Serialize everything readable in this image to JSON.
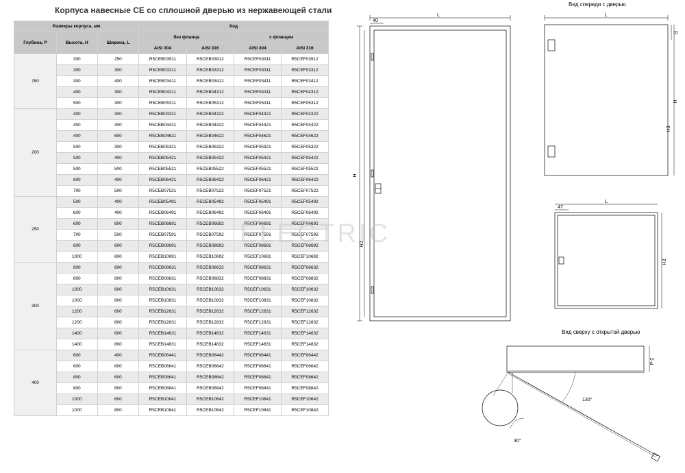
{
  "title": "Корпуса навесные CE со сплошной дверью из нержавеющей стали",
  "watermark": "ELECTRIC",
  "table": {
    "header1": {
      "dims": "Размеры корпуса, мм",
      "code": "Код"
    },
    "header2": {
      "noflange": "без фланца",
      "flange": "с фланцем"
    },
    "header3": {
      "depth": "Глубина, P",
      "height": "Высота, H",
      "width": "Ширина, L",
      "a304": "AISI 304",
      "a316": "AISI 316",
      "a304f": "AISI 304",
      "a316f": "AISI 316"
    },
    "groups": [
      {
        "depth": "150",
        "rows": [
          [
            "300",
            "250",
            "R5CEB03911",
            "R5CEB03912",
            "R5CEF03911",
            "R5CEF03912"
          ],
          [
            "300",
            "300",
            "R5CEB03311",
            "R5CEB03312",
            "R5CEF03311",
            "R5CEF03312"
          ],
          [
            "300",
            "400",
            "R5CEB03411",
            "R5CEB03412",
            "R5CEF03411",
            "R5CEF03412"
          ],
          [
            "400",
            "300",
            "R5CEB04311",
            "R5CEB04312",
            "R5CEF04311",
            "R5CEF04312"
          ],
          [
            "500",
            "300",
            "R5CEB05311",
            "R5CEB05312",
            "R5CEF05311",
            "R5CEF05312"
          ]
        ]
      },
      {
        "depth": "200",
        "rows": [
          [
            "400",
            "300",
            "R5CEB04321",
            "R5CEB04322",
            "R5CEF04321",
            "R5CEF04322"
          ],
          [
            "400",
            "400",
            "R5CEB04421",
            "R5CEB04422",
            "R5CEF04421",
            "R5CEF04422"
          ],
          [
            "400",
            "600",
            "R5CEB04621",
            "R5CEB04622",
            "R5CEF04621",
            "R5CEF04622"
          ],
          [
            "500",
            "300",
            "R5CEB05321",
            "R5CEB05322",
            "R5CEF05321",
            "R5CEF05322"
          ],
          [
            "500",
            "400",
            "R5CEB05421",
            "R5CEB05422",
            "R5CEF05421",
            "R5CEF05422"
          ],
          [
            "500",
            "500",
            "R5CEB05521",
            "R5CEB05522",
            "R5CEF05521",
            "R5CEF05522"
          ],
          [
            "600",
            "400",
            "R5CEB06421",
            "R5CEB06422",
            "R5CEF06421",
            "R5CEF06422"
          ],
          [
            "700",
            "500",
            "R5CEB07521",
            "R5CEB07522",
            "R5CEF07521",
            "R5CEF07522"
          ]
        ]
      },
      {
        "depth": "250",
        "rows": [
          [
            "500",
            "400",
            "R5CEB05491",
            "R5CEB05492",
            "R5CEF05491",
            "R5CEF05492"
          ],
          [
            "600",
            "400",
            "R5CEB06491",
            "R5CEB06492",
            "R5CEF06491",
            "R5CEF06492"
          ],
          [
            "600",
            "600",
            "R5CEB06691",
            "R5CEB06692",
            "R5CEF06691",
            "R5CEF06692"
          ],
          [
            "700",
            "500",
            "R5CEB07591",
            "R5CEB07592",
            "R5CEF07591",
            "R5CEF07592"
          ],
          [
            "800",
            "600",
            "R5CEB08691",
            "R5CEB08692",
            "R5CEF08691",
            "R5CEF08692"
          ],
          [
            "1000",
            "600",
            "R5CEB10691",
            "R5CEB10692",
            "R5CEF10691",
            "R5CEF10692"
          ]
        ]
      },
      {
        "depth": "300",
        "rows": [
          [
            "800",
            "600",
            "R5CEB08631",
            "R5CEB08632",
            "R5CEF08631",
            "R5CEF08632"
          ],
          [
            "800",
            "800",
            "R5CEB08831",
            "R5CEB08832",
            "R5CEF08831",
            "R5CEF08832"
          ],
          [
            "1000",
            "600",
            "R5CEB10631",
            "R5CEB10632",
            "R5CEF10631",
            "R5CEF10632"
          ],
          [
            "1000",
            "800",
            "R5CEB10831",
            "R5CEB10832",
            "R5CEF10831",
            "R5CEF10832"
          ],
          [
            "1200",
            "600",
            "R5CEB12631",
            "R5CEB12632",
            "R5CEF12631",
            "R5CEF12632"
          ],
          [
            "1200",
            "800",
            "R5CEB12831",
            "R5CEB12832",
            "R5CEF12831",
            "R5CEF12832"
          ],
          [
            "1400",
            "600",
            "R5CEB14631",
            "R5CEB14632",
            "R5CEF14631",
            "R5CEF14632"
          ],
          [
            "1400",
            "800",
            "R5CEB14831",
            "R5CEB14832",
            "R5CEF14831",
            "R5CEF14832"
          ]
        ]
      },
      {
        "depth": "400",
        "rows": [
          [
            "600",
            "400",
            "R5CEB06441",
            "R5CEB06442",
            "R5CEF06441",
            "R5CEF06442"
          ],
          [
            "600",
            "600",
            "R5CEB06641",
            "R5CEB06642",
            "R5CEF06641",
            "R5CEF06642"
          ],
          [
            "800",
            "600",
            "R5CEB08641",
            "R5CEB08642",
            "R5CEF08641",
            "R5CEF08642"
          ],
          [
            "800",
            "800",
            "R5CEB08841",
            "R5CEB08842",
            "R5CEF08841",
            "R5CEF08842"
          ],
          [
            "1000",
            "600",
            "R5CEB10641",
            "R5CEB10642",
            "R5CEF10641",
            "R5CEF10642"
          ],
          [
            "1000",
            "800",
            "R5CEB10841",
            "R5CEB10842",
            "R5CEF10841",
            "R5CEF10842"
          ]
        ]
      }
    ]
  },
  "diagrams": {
    "front_label": "Вид спереди с дверью",
    "top_open_label": "Вид сверху с открытой дверью",
    "dims": {
      "L": "L",
      "H": "H",
      "H2": "H2",
      "H3": "H3",
      "P": "P",
      "P2": "P-2",
      "n40": "40",
      "n47": "47",
      "n23": "23",
      "a130": "130°",
      "a30": "30°"
    }
  }
}
